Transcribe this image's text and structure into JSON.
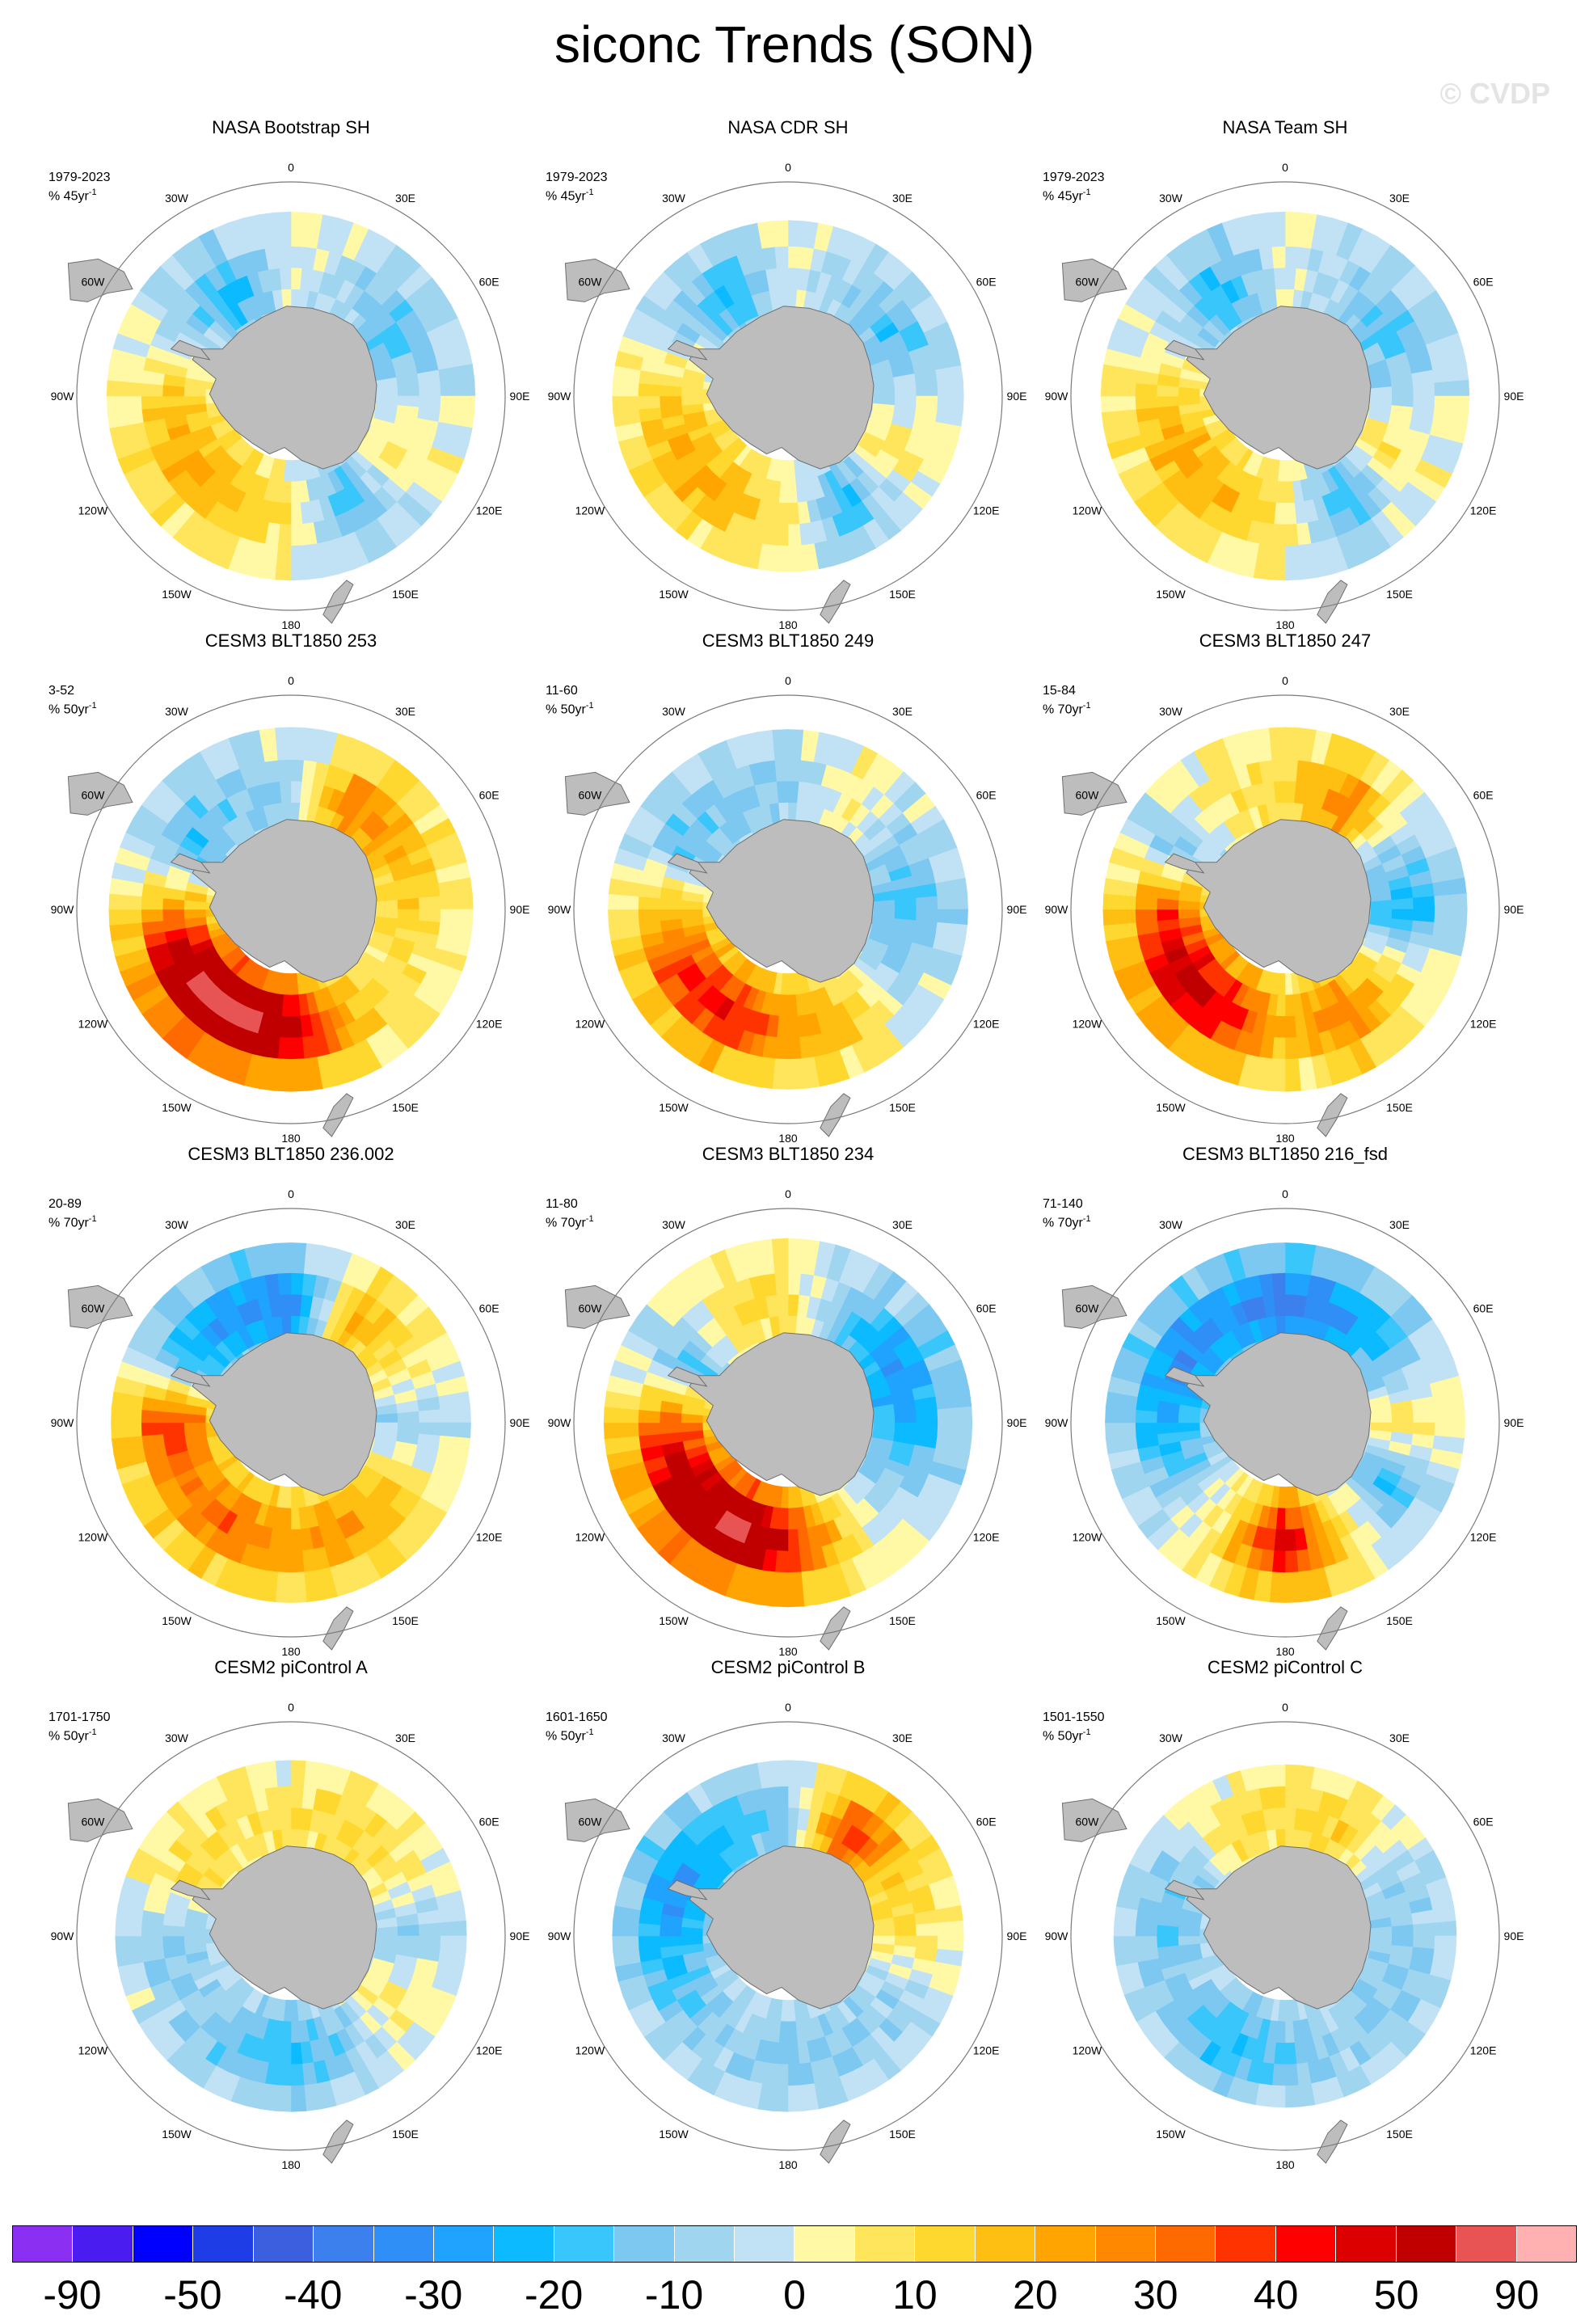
{
  "page": {
    "title": "siconc Trends (SON)",
    "watermark": "© CVDP"
  },
  "longitude_labels": [
    "0",
    "30E",
    "60E",
    "90E",
    "120E",
    "150E",
    "180",
    "150W",
    "120W",
    "90W",
    "60W",
    "30W"
  ],
  "panels": [
    {
      "title": "NASA Bootstrap SH",
      "period": "1979-2023",
      "units": "% 45yr",
      "style": "obs",
      "pattern": [
        0,
        -8,
        -18,
        -5,
        8,
        -20,
        6,
        18,
        22,
        14,
        -6,
        -22
      ],
      "extent": 0.86
    },
    {
      "title": "NASA CDR SH",
      "period": "1979-2023",
      "units": "% 45yr",
      "style": "obs",
      "pattern": [
        0,
        -8,
        -18,
        -5,
        8,
        -20,
        6,
        18,
        22,
        14,
        -6,
        -22
      ],
      "extent": 0.82
    },
    {
      "title": "NASA Team SH",
      "period": "1979-2023",
      "units": "% 45yr",
      "style": "obs",
      "pattern": [
        0,
        -8,
        -18,
        -5,
        8,
        -20,
        6,
        18,
        22,
        14,
        -6,
        -22
      ],
      "extent": 0.86
    },
    {
      "title": "CESM3 BLT1850 253",
      "period": "3-52",
      "units": "% 50yr",
      "style": "model",
      "pattern": [
        -8,
        30,
        20,
        12,
        8,
        18,
        55,
        75,
        70,
        25,
        -18,
        -12
      ],
      "extent": 0.85
    },
    {
      "title": "CESM3 BLT1850 249",
      "period": "11-60",
      "units": "% 50yr",
      "style": "model",
      "pattern": [
        -10,
        5,
        -10,
        -18,
        -8,
        15,
        25,
        45,
        40,
        18,
        -15,
        -12
      ],
      "extent": 0.84
    },
    {
      "title": "CESM3 BLT1850 247",
      "period": "15-84",
      "units": "% 70yr",
      "style": "model",
      "pattern": [
        10,
        30,
        -8,
        -25,
        8,
        30,
        18,
        45,
        55,
        35,
        -12,
        8
      ],
      "extent": 0.85
    },
    {
      "title": "CESM3 BLT1850 236.002",
      "period": "20-89",
      "units": "% 70yr",
      "style": "model",
      "pattern": [
        -35,
        20,
        10,
        -10,
        12,
        25,
        22,
        32,
        28,
        40,
        -20,
        -30
      ],
      "extent": 0.84
    },
    {
      "title": "CESM3 BLT1850 234",
      "period": "11-80",
      "units": "% 70yr",
      "style": "model",
      "pattern": [
        10,
        -15,
        -30,
        -25,
        -10,
        8,
        45,
        75,
        60,
        35,
        -18,
        10
      ],
      "extent": 0.86
    },
    {
      "title": "CESM3 BLT1850 216_fsd",
      "period": "71-140",
      "units": "% 70yr",
      "style": "model",
      "pattern": [
        -38,
        -30,
        -15,
        10,
        -20,
        8,
        50,
        10,
        -12,
        -25,
        -32,
        -30
      ],
      "extent": 0.84
    },
    {
      "title": "CESM2 piControl A",
      "period": "1701-1750",
      "units": "% 50yr",
      "style": "model",
      "pattern": [
        8,
        12,
        6,
        -12,
        8,
        -10,
        -20,
        -15,
        -8,
        -12,
        10,
        8
      ],
      "extent": 0.82
    },
    {
      "title": "CESM2 piControl B",
      "period": "1601-1650",
      "units": "% 50yr",
      "style": "model",
      "pattern": [
        -12,
        40,
        15,
        8,
        -8,
        -10,
        -12,
        -8,
        -15,
        -25,
        -30,
        -20
      ],
      "extent": 0.82
    },
    {
      "title": "CESM2 piControl C",
      "period": "1501-1550",
      "units": "% 50yr",
      "style": "model",
      "pattern": [
        10,
        12,
        -8,
        -10,
        -12,
        -8,
        -15,
        -22,
        -10,
        -14,
        -12,
        8
      ],
      "extent": 0.8
    }
  ],
  "colorbar": {
    "colors": [
      "#8b2ff2",
      "#4a1cf0",
      "#0000ff",
      "#1f3de6",
      "#3c5fe0",
      "#3c80ee",
      "#2f8ff7",
      "#1fa3ff",
      "#0bbaff",
      "#39c6fb",
      "#7cc8f1",
      "#a0d5f0",
      "#c1e2f5",
      "#fff9a6",
      "#ffe55b",
      "#ffd82f",
      "#ffbe12",
      "#ffa400",
      "#ff8800",
      "#ff6a00",
      "#ff3300",
      "#ff0000",
      "#dd0000",
      "#c00000",
      "#e85454",
      "#ffb0b0"
    ],
    "ticks": [
      {
        "label": "-90",
        "boundary": 1
      },
      {
        "label": "-50",
        "boundary": 3
      },
      {
        "label": "-40",
        "boundary": 5
      },
      {
        "label": "-30",
        "boundary": 7
      },
      {
        "label": "-20",
        "boundary": 9
      },
      {
        "label": "-10",
        "boundary": 11
      },
      {
        "label": "0",
        "boundary": 13
      },
      {
        "label": "10",
        "boundary": 15
      },
      {
        "label": "20",
        "boundary": 17
      },
      {
        "label": "30",
        "boundary": 19
      },
      {
        "label": "40",
        "boundary": 21
      },
      {
        "label": "50",
        "boundary": 23
      },
      {
        "label": "90",
        "boundary": 25
      }
    ]
  },
  "colors": {
    "land": "#bdbdbd",
    "coast": "#6e6e6e",
    "circle": "#7a7a7a"
  }
}
